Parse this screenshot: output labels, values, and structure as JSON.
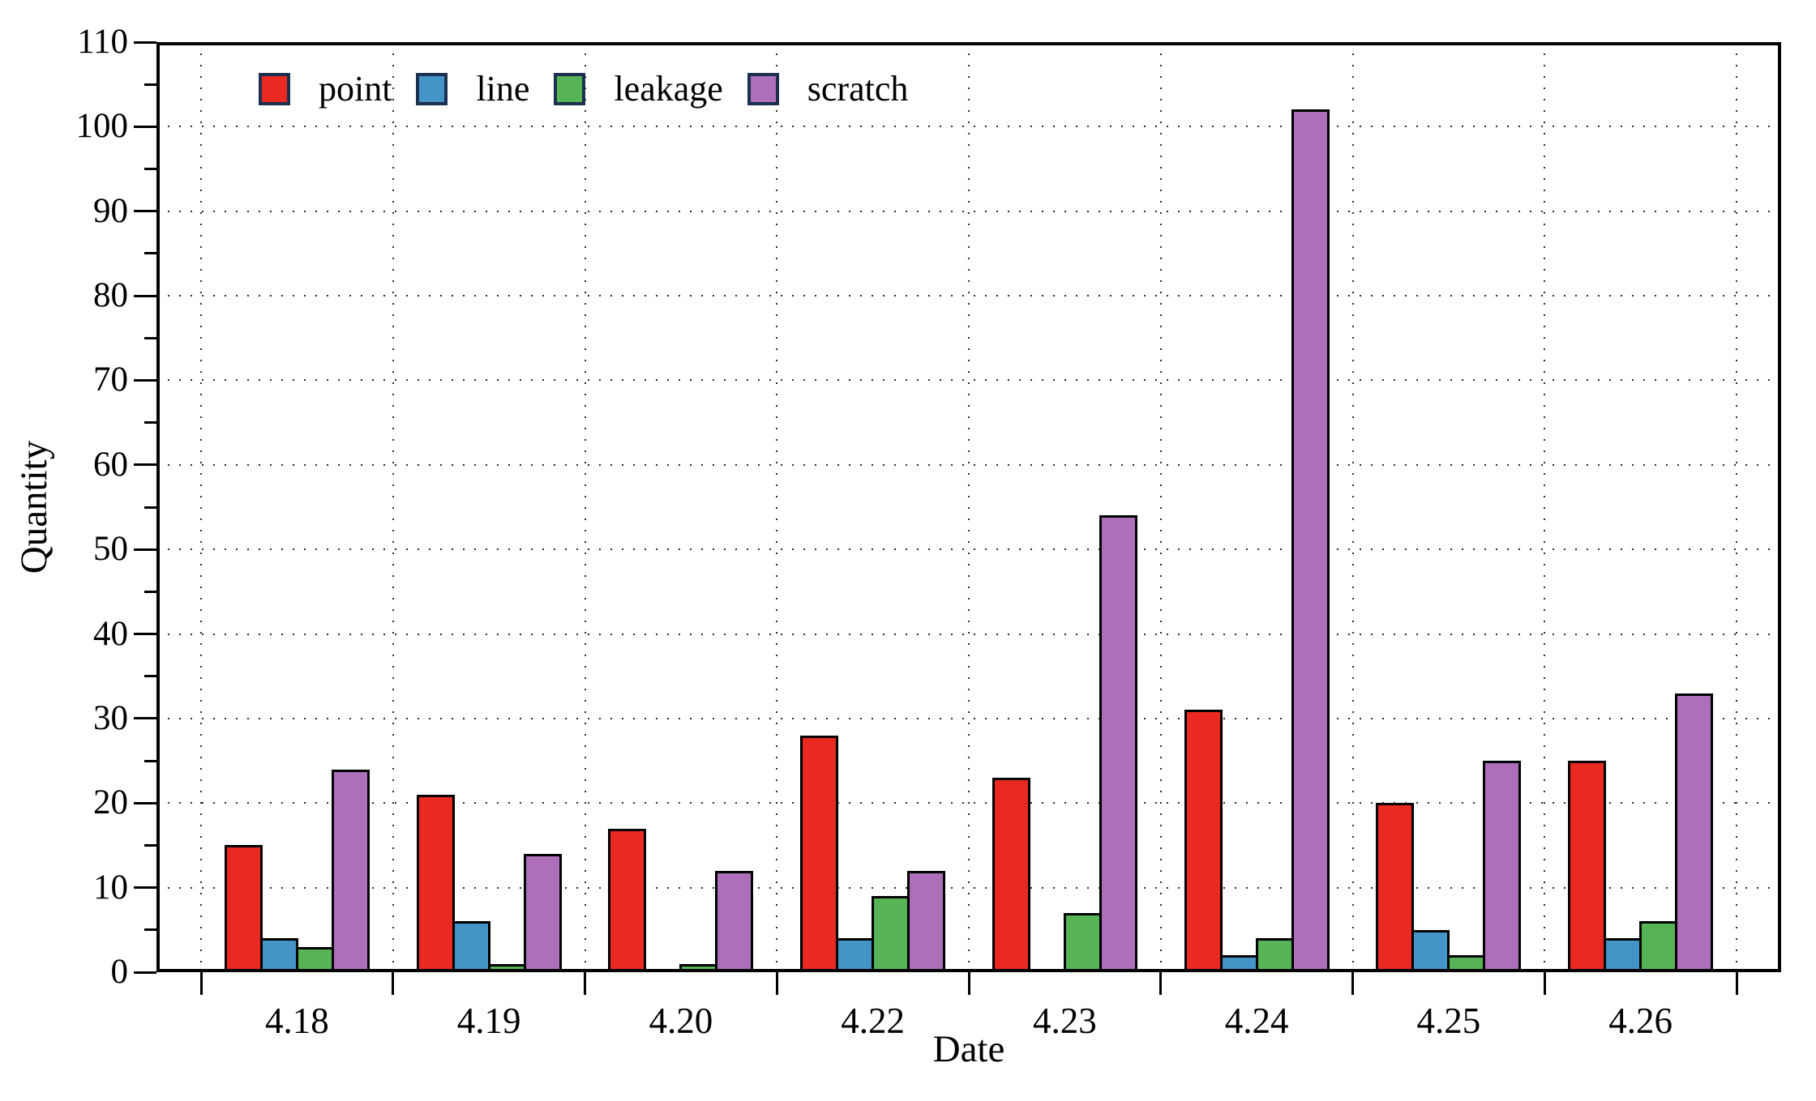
{
  "chart_data": {
    "type": "bar",
    "title": "",
    "xlabel": "Date",
    "ylabel": "Quantity",
    "categories": [
      "4.18",
      "4.19",
      "4.20",
      "4.22",
      "4.23",
      "4.24",
      "4.25",
      "4.26"
    ],
    "series": [
      {
        "name": "point",
        "color": "#ea2a21",
        "values": [
          15,
          21,
          17,
          28,
          23,
          31,
          20,
          25
        ]
      },
      {
        "name": "line",
        "color": "#4594c7",
        "values": [
          4,
          6,
          0,
          4,
          0,
          2,
          5,
          4
        ]
      },
      {
        "name": "leakage",
        "color": "#56b456",
        "values": [
          3,
          1,
          1,
          9,
          7,
          4,
          2,
          6
        ]
      },
      {
        "name": "scratch",
        "color": "#ad6fba",
        "values": [
          24,
          14,
          12,
          12,
          54,
          102,
          25,
          33
        ]
      }
    ],
    "ylim": [
      0,
      110
    ],
    "ytick_step": 10,
    "ytick_minor_step": 5,
    "grid": "dotted",
    "grid_color": "#2b2b2b",
    "legend_position": "top-left-inside",
    "legend_border_color": "#1c3050",
    "bar_border_color": "#000000",
    "axis_color": "#000000",
    "frame": true
  }
}
